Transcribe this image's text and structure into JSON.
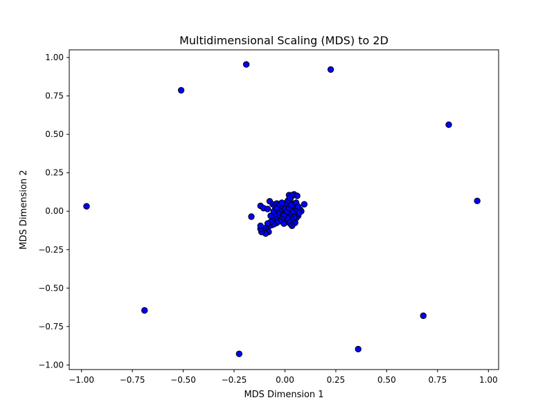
{
  "chart_data": {
    "type": "scatter",
    "title": "Multidimensional Scaling (MDS) to 2D",
    "xlabel": "MDS Dimension 1",
    "ylabel": "MDS Dimension 2",
    "xlim": [
      -1.06,
      1.05
    ],
    "ylim": [
      -1.03,
      1.05
    ],
    "xticks": [
      -1.0,
      -0.75,
      -0.5,
      -0.25,
      0.0,
      0.25,
      0.5,
      0.75,
      1.0
    ],
    "xtick_labels": [
      "−1.00",
      "−0.75",
      "−0.50",
      "−0.25",
      "0.00",
      "0.25",
      "0.50",
      "0.75",
      "1.00"
    ],
    "yticks": [
      -1.0,
      -0.75,
      -0.5,
      -0.25,
      0.0,
      0.25,
      0.5,
      0.75,
      1.0
    ],
    "ytick_labels": [
      "−1.00",
      "−0.75",
      "−0.50",
      "−0.25",
      "0.00",
      "0.25",
      "0.50",
      "0.75",
      "1.00"
    ],
    "grid": false,
    "marker_fill": "#0000ff",
    "marker_edge": "#000000",
    "points": [
      {
        "x": -0.19,
        "y": 0.955
      },
      {
        "x": 0.225,
        "y": 0.922
      },
      {
        "x": -0.51,
        "y": 0.787
      },
      {
        "x": 0.805,
        "y": 0.563
      },
      {
        "x": -0.975,
        "y": 0.032
      },
      {
        "x": 0.945,
        "y": 0.067
      },
      {
        "x": -0.69,
        "y": -0.645
      },
      {
        "x": 0.68,
        "y": -0.68
      },
      {
        "x": -0.225,
        "y": -0.928
      },
      {
        "x": 0.36,
        "y": -0.897
      },
      {
        "x": 0.02,
        "y": 0.105
      },
      {
        "x": 0.045,
        "y": 0.11
      },
      {
        "x": 0.06,
        "y": 0.1
      },
      {
        "x": 0.03,
        "y": 0.09
      },
      {
        "x": 0.035,
        "y": 0.105
      },
      {
        "x": 0.095,
        "y": 0.045
      },
      {
        "x": 0.075,
        "y": 0.01
      },
      {
        "x": 0.08,
        "y": 0.0
      },
      {
        "x": 0.065,
        "y": -0.03
      },
      {
        "x": 0.05,
        "y": -0.02
      },
      {
        "x": 0.04,
        "y": -0.06
      },
      {
        "x": 0.05,
        "y": -0.075
      },
      {
        "x": 0.035,
        "y": -0.095
      },
      {
        "x": 0.025,
        "y": -0.08
      },
      {
        "x": 0.015,
        "y": -0.07
      },
      {
        "x": 0.005,
        "y": -0.06
      },
      {
        "x": 0.0,
        "y": -0.04
      },
      {
        "x": 0.01,
        "y": -0.02
      },
      {
        "x": 0.02,
        "y": -0.03
      },
      {
        "x": 0.03,
        "y": -0.01
      },
      {
        "x": 0.04,
        "y": 0.0
      },
      {
        "x": 0.05,
        "y": 0.03
      },
      {
        "x": 0.04,
        "y": 0.05
      },
      {
        "x": 0.025,
        "y": 0.06
      },
      {
        "x": 0.015,
        "y": 0.04
      },
      {
        "x": 0.005,
        "y": 0.02
      },
      {
        "x": -0.01,
        "y": 0.0
      },
      {
        "x": -0.02,
        "y": -0.02
      },
      {
        "x": -0.03,
        "y": -0.04
      },
      {
        "x": -0.045,
        "y": -0.05
      },
      {
        "x": -0.06,
        "y": -0.06
      },
      {
        "x": -0.05,
        "y": -0.08
      },
      {
        "x": -0.065,
        "y": -0.09
      },
      {
        "x": -0.08,
        "y": -0.1
      },
      {
        "x": -0.095,
        "y": -0.11
      },
      {
        "x": -0.1,
        "y": -0.13
      },
      {
        "x": -0.08,
        "y": -0.135
      },
      {
        "x": -0.095,
        "y": -0.145
      },
      {
        "x": -0.115,
        "y": -0.135
      },
      {
        "x": -0.12,
        "y": -0.115
      },
      {
        "x": -0.12,
        "y": -0.095
      },
      {
        "x": -0.165,
        "y": -0.035
      },
      {
        "x": -0.12,
        "y": 0.035
      },
      {
        "x": -0.105,
        "y": 0.02
      },
      {
        "x": -0.085,
        "y": 0.015
      },
      {
        "x": -0.075,
        "y": 0.065
      },
      {
        "x": -0.06,
        "y": 0.045
      },
      {
        "x": -0.05,
        "y": 0.035
      },
      {
        "x": -0.04,
        "y": 0.05
      },
      {
        "x": -0.03,
        "y": 0.03
      },
      {
        "x": -0.02,
        "y": 0.01
      },
      {
        "x": -0.035,
        "y": -0.01
      },
      {
        "x": -0.05,
        "y": -0.02
      },
      {
        "x": -0.07,
        "y": -0.03
      },
      {
        "x": -0.055,
        "y": 0.0
      },
      {
        "x": -0.04,
        "y": 0.02
      },
      {
        "x": -0.025,
        "y": 0.045
      },
      {
        "x": -0.01,
        "y": 0.03
      },
      {
        "x": 0.0,
        "y": 0.015
      },
      {
        "x": 0.01,
        "y": 0.0
      },
      {
        "x": 0.02,
        "y": 0.02
      },
      {
        "x": 0.03,
        "y": 0.04
      },
      {
        "x": 0.06,
        "y": 0.01
      },
      {
        "x": 0.07,
        "y": -0.01
      },
      {
        "x": 0.055,
        "y": -0.045
      },
      {
        "x": 0.045,
        "y": -0.04
      },
      {
        "x": 0.03,
        "y": -0.05
      },
      {
        "x": 0.02,
        "y": -0.06
      },
      {
        "x": 0.01,
        "y": -0.045
      },
      {
        "x": -0.005,
        "y": -0.03
      },
      {
        "x": -0.015,
        "y": -0.05
      },
      {
        "x": -0.025,
        "y": -0.065
      },
      {
        "x": -0.04,
        "y": -0.075
      },
      {
        "x": -0.055,
        "y": -0.085
      },
      {
        "x": -0.07,
        "y": -0.07
      },
      {
        "x": -0.085,
        "y": -0.08
      },
      {
        "x": 0.0,
        "y": 0.05
      },
      {
        "x": 0.015,
        "y": 0.07
      },
      {
        "x": 0.025,
        "y": 0.085
      },
      {
        "x": -0.015,
        "y": 0.055
      },
      {
        "x": 0.055,
        "y": 0.055
      },
      {
        "x": 0.065,
        "y": 0.03
      },
      {
        "x": -0.005,
        "y": -0.08
      }
    ]
  }
}
